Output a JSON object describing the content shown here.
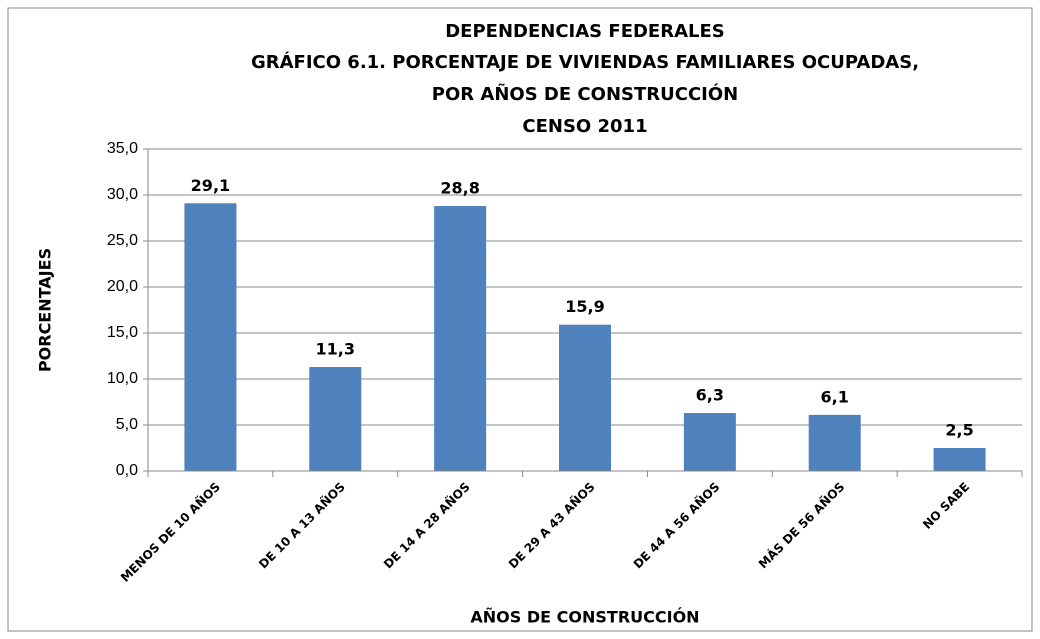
{
  "chart_data": {
    "type": "bar",
    "title": [
      "DEPENDENCIAS FEDERALES",
      "GRÁFICO 6.1. PORCENTAJE DE VIVIENDAS FAMILIARES OCUPADAS,",
      "POR AÑOS DE CONSTRUCCIÓN",
      "CENSO 2011"
    ],
    "x_label": "AÑOS DE CONSTRUCCIÓN",
    "y_label": "PORCENTAJES",
    "categories": [
      "MENOS DE 10 AÑOS",
      "DE 10 A 13 AÑOS",
      "DE 14 A 28 AÑOS",
      "DE 29 A 43 AÑOS",
      "DE 44 A 56 AÑOS",
      "MÁS DE 56 AÑOS",
      "NO SABE"
    ],
    "values": [
      29.1,
      11.3,
      28.8,
      15.9,
      6.3,
      6.1,
      2.5
    ],
    "value_labels": [
      "29,1",
      "11,3",
      "28,8",
      "15,9",
      "6,3",
      "6,1",
      "2,5"
    ],
    "color": "#4f81bd",
    "ylim": [
      0,
      35
    ],
    "yticks": [
      {
        "value": 0,
        "label": "0,0"
      },
      {
        "value": 5,
        "label": "5,0"
      },
      {
        "value": 10,
        "label": "10,0"
      },
      {
        "value": 15,
        "label": "15,0"
      },
      {
        "value": 20,
        "label": "20,0"
      },
      {
        "value": 25,
        "label": "25,0"
      },
      {
        "value": 30,
        "label": "30,0"
      },
      {
        "value": 35,
        "label": "35,0"
      }
    ],
    "grid": true
  }
}
